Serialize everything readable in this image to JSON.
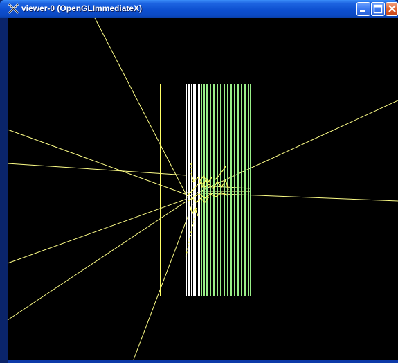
{
  "window": {
    "title": "viewer-0 (OpenGLImmediateX)",
    "icon": "x11-icon",
    "buttons": [
      {
        "name": "minimize-button",
        "icon": "minimize-icon"
      },
      {
        "name": "maximize-button",
        "icon": "maximize-icon"
      },
      {
        "name": "close-button",
        "icon": "close-icon"
      }
    ]
  },
  "viewport": {
    "background": "#000000",
    "track_color": "#ffff66",
    "detector_color": "#ffffff",
    "layer_colors": [
      "#ffffff",
      "#88ee88"
    ]
  }
}
